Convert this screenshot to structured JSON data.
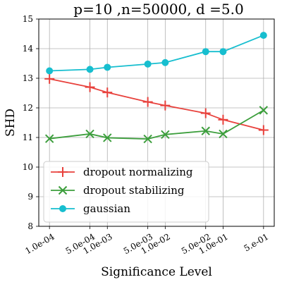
{
  "chart_data": {
    "type": "line",
    "title": "p=10 ,n=50000, d =5.0",
    "xlabel": "Significance Level",
    "ylabel": "SHD",
    "x_scale": "log",
    "x": [
      0.0001,
      0.0005,
      0.001,
      0.005,
      0.01,
      0.05,
      0.1,
      0.5
    ],
    "x_tick_labels": [
      "1.0e-04",
      "5.0e-04",
      "1.0e-03",
      "5.0e-03",
      "1.0e-02",
      "5.0e-02",
      "1.0e-01",
      "5.e-01"
    ],
    "ylim": [
      8,
      15
    ],
    "y_ticks": [
      8,
      9,
      10,
      11,
      12,
      13,
      14,
      15
    ],
    "grid": true,
    "legend_position": "lower-left",
    "series": [
      {
        "name": "dropout normalizing",
        "color": "#e8413c",
        "marker": "plus",
        "values": [
          12.98,
          12.7,
          12.52,
          12.2,
          12.08,
          11.82,
          11.6,
          11.25
        ]
      },
      {
        "name": "dropout stabilizing",
        "color": "#3c9e3c",
        "marker": "x",
        "values": [
          10.96,
          11.12,
          10.99,
          10.95,
          11.1,
          11.22,
          11.12,
          11.92
        ]
      },
      {
        "name": "gaussian",
        "color": "#17becf",
        "marker": "circle",
        "values": [
          13.25,
          13.3,
          13.37,
          13.48,
          13.53,
          13.9,
          13.9,
          14.45
        ]
      }
    ]
  }
}
